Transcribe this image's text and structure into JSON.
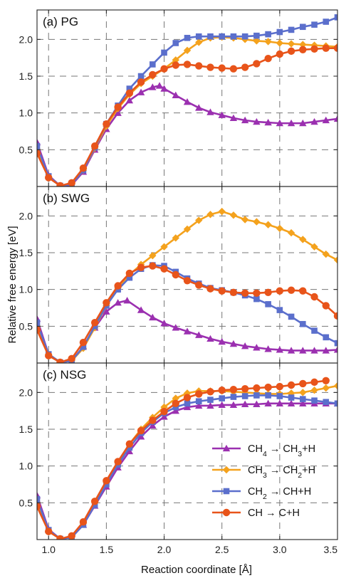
{
  "chart_data": {
    "type": "line",
    "xlabel": "Reaction coordinate [Å]",
    "ylabel": "Relative free energy [eV]",
    "xlim": [
      0.9,
      3.5
    ],
    "xticks": [
      1.0,
      1.5,
      2.0,
      2.5,
      3.0,
      3.5
    ],
    "grid": true,
    "legend": {
      "placement": "bottom-right of panel (c)",
      "entries": [
        {
          "series": "ch4",
          "parts": [
            {
              "t": "CH"
            },
            {
              "t": "4",
              "sub": true
            },
            {
              "t": " → CH"
            },
            {
              "t": "3",
              "sub": true
            },
            {
              "t": "+H"
            }
          ]
        },
        {
          "series": "ch3",
          "parts": [
            {
              "t": "CH"
            },
            {
              "t": "3",
              "sub": true
            },
            {
              "t": " → CH"
            },
            {
              "t": "2",
              "sub": true
            },
            {
              "t": "+H"
            }
          ]
        },
        {
          "series": "ch2",
          "parts": [
            {
              "t": "CH"
            },
            {
              "t": "2",
              "sub": true
            },
            {
              "t": " → CH+H"
            }
          ]
        },
        {
          "series": "ch",
          "parts": [
            {
              "t": "CH → C+H"
            }
          ]
        }
      ]
    },
    "series_styles": {
      "ch4": {
        "color": "#9b30b0",
        "marker": "triangle"
      },
      "ch3": {
        "color": "#f4a21d",
        "marker": "diamond"
      },
      "ch2": {
        "color": "#5b6fcc",
        "marker": "square"
      },
      "ch": {
        "color": "#e8541a",
        "marker": "circle"
      }
    },
    "panels": [
      {
        "label": "(a) PG",
        "ylim": [
          0.0,
          2.4
        ],
        "yticks": [
          0.5,
          1.0,
          1.5,
          2.0
        ],
        "series": {
          "ch4": {
            "x": [
              0.9,
              1.0,
              1.1,
              1.2,
              1.3,
              1.4,
              1.5,
              1.6,
              1.7,
              1.8,
              1.9,
              1.96,
              2.0,
              2.1,
              2.2,
              2.3,
              2.4,
              2.5,
              2.6,
              2.7,
              2.8,
              2.9,
              3.0,
              3.1,
              3.2,
              3.3,
              3.4,
              3.5
            ],
            "y": [
              0.6,
              0.15,
              0.01,
              0.02,
              0.2,
              0.5,
              0.78,
              1.0,
              1.17,
              1.28,
              1.35,
              1.37,
              1.33,
              1.24,
              1.15,
              1.07,
              1.01,
              0.97,
              0.93,
              0.9,
              0.88,
              0.87,
              0.86,
              0.86,
              0.86,
              0.88,
              0.9,
              0.92
            ]
          },
          "ch3": {
            "x": [
              0.9,
              1.0,
              1.1,
              1.2,
              1.3,
              1.4,
              1.5,
              1.6,
              1.7,
              1.8,
              1.9,
              2.0,
              2.1,
              2.2,
              2.3,
              2.4,
              2.5,
              2.6,
              2.7,
              2.8,
              2.9,
              3.0,
              3.1,
              3.2,
              3.3,
              3.4,
              3.5
            ],
            "y": [
              0.5,
              0.13,
              0.01,
              0.03,
              0.22,
              0.52,
              0.82,
              1.06,
              1.25,
              1.4,
              1.5,
              1.6,
              1.72,
              1.85,
              1.96,
              2.02,
              2.03,
              2.02,
              2.0,
              1.98,
              1.97,
              1.95,
              1.94,
              1.93,
              1.92,
              1.91,
              1.9
            ]
          },
          "ch2": {
            "x": [
              0.9,
              1.0,
              1.1,
              1.2,
              1.3,
              1.4,
              1.5,
              1.6,
              1.7,
              1.8,
              1.9,
              2.0,
              2.1,
              2.2,
              2.3,
              2.4,
              2.5,
              2.6,
              2.7,
              2.8,
              2.9,
              3.0,
              3.1,
              3.2,
              3.3,
              3.4,
              3.5
            ],
            "y": [
              0.55,
              0.14,
              0.01,
              0.03,
              0.22,
              0.53,
              0.85,
              1.1,
              1.33,
              1.5,
              1.66,
              1.82,
              1.95,
              2.02,
              2.04,
              2.04,
              2.04,
              2.04,
              2.04,
              2.05,
              2.07,
              2.1,
              2.13,
              2.17,
              2.2,
              2.24,
              2.3
            ]
          },
          "ch": {
            "x": [
              0.9,
              1.0,
              1.1,
              1.2,
              1.3,
              1.4,
              1.5,
              1.6,
              1.7,
              1.8,
              1.9,
              2.0,
              2.1,
              2.2,
              2.3,
              2.4,
              2.5,
              2.6,
              2.7,
              2.8,
              2.9,
              3.0,
              3.1,
              3.2,
              3.3,
              3.4,
              3.5
            ],
            "y": [
              0.45,
              0.12,
              0.01,
              0.05,
              0.25,
              0.55,
              0.85,
              1.08,
              1.27,
              1.42,
              1.52,
              1.6,
              1.65,
              1.66,
              1.64,
              1.62,
              1.61,
              1.6,
              1.62,
              1.67,
              1.74,
              1.8,
              1.84,
              1.86,
              1.87,
              1.88,
              1.88
            ]
          }
        }
      },
      {
        "label": "(b) SWG",
        "ylim": [
          0.0,
          2.4
        ],
        "yticks": [
          0.5,
          1.0,
          1.5,
          2.0
        ],
        "series": {
          "ch4": {
            "x": [
              0.9,
              1.0,
              1.1,
              1.2,
              1.3,
              1.4,
              1.5,
              1.6,
              1.68,
              1.8,
              1.9,
              2.0,
              2.1,
              2.2,
              2.3,
              2.4,
              2.5,
              2.6,
              2.7,
              2.8,
              2.9,
              3.0,
              3.1,
              3.2,
              3.3,
              3.4,
              3.5
            ],
            "y": [
              0.6,
              0.12,
              0.01,
              0.03,
              0.22,
              0.48,
              0.7,
              0.82,
              0.85,
              0.72,
              0.62,
              0.54,
              0.48,
              0.43,
              0.38,
              0.33,
              0.29,
              0.26,
              0.23,
              0.21,
              0.19,
              0.18,
              0.17,
              0.17,
              0.17,
              0.17,
              0.18
            ]
          },
          "ch3": {
            "x": [
              0.9,
              1.0,
              1.1,
              1.2,
              1.3,
              1.4,
              1.5,
              1.6,
              1.7,
              1.8,
              1.9,
              2.0,
              2.1,
              2.2,
              2.3,
              2.4,
              2.5,
              2.6,
              2.7,
              2.8,
              2.9,
              3.0,
              3.1,
              3.2,
              3.3,
              3.4,
              3.5
            ],
            "y": [
              0.5,
              0.12,
              0.01,
              0.03,
              0.2,
              0.48,
              0.78,
              1.02,
              1.2,
              1.34,
              1.46,
              1.58,
              1.7,
              1.82,
              1.94,
              2.02,
              2.06,
              2.01,
              1.95,
              1.92,
              1.88,
              1.83,
              1.77,
              1.68,
              1.58,
              1.48,
              1.4
            ]
          },
          "ch2": {
            "x": [
              0.9,
              1.0,
              1.1,
              1.2,
              1.3,
              1.4,
              1.5,
              1.6,
              1.7,
              1.8,
              1.9,
              2.0,
              2.1,
              2.2,
              2.3,
              2.4,
              2.5,
              2.6,
              2.7,
              2.8,
              2.9,
              3.0,
              3.1,
              3.2,
              3.3,
              3.4,
              3.5
            ],
            "y": [
              0.55,
              0.12,
              0.01,
              0.03,
              0.22,
              0.5,
              0.78,
              1.0,
              1.16,
              1.28,
              1.33,
              1.32,
              1.24,
              1.15,
              1.08,
              1.02,
              0.99,
              0.96,
              0.92,
              0.87,
              0.8,
              0.72,
              0.63,
              0.53,
              0.44,
              0.35,
              0.27
            ]
          },
          "ch": {
            "x": [
              0.9,
              1.0,
              1.1,
              1.2,
              1.3,
              1.4,
              1.5,
              1.6,
              1.7,
              1.8,
              1.9,
              2.0,
              2.1,
              2.2,
              2.3,
              2.4,
              2.5,
              2.6,
              2.7,
              2.8,
              2.9,
              3.0,
              3.1,
              3.2,
              3.3,
              3.4,
              3.5
            ],
            "y": [
              0.45,
              0.1,
              0.01,
              0.06,
              0.28,
              0.55,
              0.82,
              1.05,
              1.22,
              1.3,
              1.32,
              1.28,
              1.2,
              1.12,
              1.06,
              1.01,
              0.98,
              0.96,
              0.95,
              0.95,
              0.96,
              0.98,
              0.99,
              0.98,
              0.9,
              0.78,
              0.64
            ]
          }
        }
      },
      {
        "label": "(c) NSG",
        "ylim": [
          0.0,
          2.4
        ],
        "yticks": [
          0.5,
          1.0,
          1.5,
          2.0
        ],
        "series": {
          "ch4": {
            "x": [
              0.9,
              1.0,
              1.1,
              1.2,
              1.3,
              1.4,
              1.5,
              1.6,
              1.7,
              1.8,
              1.9,
              2.0,
              2.1,
              2.2,
              2.3,
              2.4,
              2.5,
              2.6,
              2.7,
              2.8,
              2.9,
              3.0,
              3.1,
              3.2,
              3.3,
              3.4,
              3.5
            ],
            "y": [
              0.6,
              0.14,
              0.01,
              0.03,
              0.2,
              0.46,
              0.72,
              0.98,
              1.2,
              1.4,
              1.55,
              1.67,
              1.75,
              1.8,
              1.82,
              1.82,
              1.83,
              1.83,
              1.84,
              1.84,
              1.85,
              1.85,
              1.85,
              1.85,
              1.85,
              1.85,
              1.85
            ]
          },
          "ch3": {
            "x": [
              0.9,
              1.0,
              1.1,
              1.2,
              1.3,
              1.4,
              1.5,
              1.6,
              1.7,
              1.8,
              1.9,
              2.0,
              2.1,
              2.2,
              2.3,
              2.4,
              2.5,
              2.6,
              2.7,
              2.8,
              2.9,
              3.0,
              3.1,
              3.2,
              3.3,
              3.4,
              3.5
            ],
            "y": [
              0.5,
              0.12,
              0.01,
              0.04,
              0.22,
              0.5,
              0.78,
              1.05,
              1.3,
              1.5,
              1.66,
              1.8,
              1.92,
              1.99,
              2.02,
              2.02,
              2.02,
              2.01,
              2.0,
              1.99,
              1.98,
              1.98,
              1.99,
              2.0,
              2.03,
              2.06,
              2.09
            ]
          },
          "ch2": {
            "x": [
              0.9,
              1.0,
              1.1,
              1.2,
              1.3,
              1.4,
              1.5,
              1.6,
              1.7,
              1.8,
              1.9,
              2.0,
              2.1,
              2.2,
              2.3,
              2.4,
              2.5,
              2.6,
              2.7,
              2.8,
              2.9,
              3.0,
              3.1,
              3.2,
              3.3,
              3.4,
              3.5
            ],
            "y": [
              0.55,
              0.13,
              0.01,
              0.03,
              0.2,
              0.47,
              0.75,
              1.02,
              1.25,
              1.45,
              1.6,
              1.72,
              1.8,
              1.85,
              1.88,
              1.9,
              1.92,
              1.94,
              1.95,
              1.96,
              1.96,
              1.95,
              1.93,
              1.91,
              1.89,
              1.87,
              1.85
            ]
          },
          "ch": {
            "x": [
              0.9,
              1.0,
              1.1,
              1.2,
              1.3,
              1.4,
              1.5,
              1.6,
              1.7,
              1.8,
              1.9,
              2.0,
              2.1,
              2.2,
              2.3,
              2.4,
              2.5,
              2.6,
              2.7,
              2.8,
              2.9,
              3.0,
              3.1,
              3.2,
              3.3,
              3.4
            ],
            "y": [
              0.45,
              0.11,
              0.01,
              0.05,
              0.24,
              0.52,
              0.8,
              1.06,
              1.3,
              1.48,
              1.62,
              1.74,
              1.85,
              1.93,
              1.98,
              2.01,
              2.03,
              2.04,
              2.05,
              2.06,
              2.07,
              2.08,
              2.1,
              2.12,
              2.14,
              2.16
            ]
          }
        }
      }
    ]
  }
}
